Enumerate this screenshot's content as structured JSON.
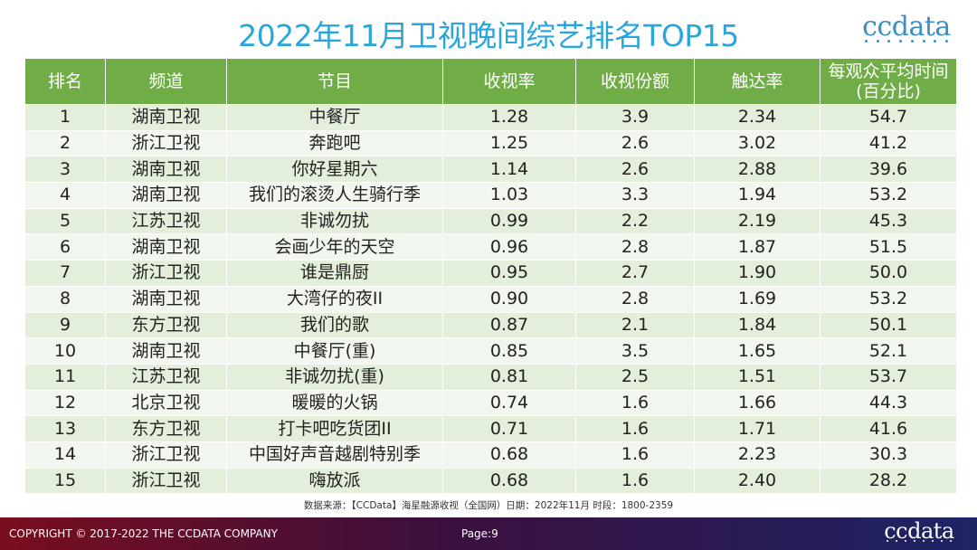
{
  "title": "2022年11月卫视晚间综艺排名TOP15",
  "logo": "ccdata",
  "table": {
    "headers": [
      "排名",
      "频道",
      "节目",
      "收视率",
      "收视份额",
      "触达率",
      "每观众平均时间\n(百分比)"
    ],
    "rows": [
      [
        "1",
        "湖南卫视",
        "中餐厅",
        "1.28",
        "3.9",
        "2.34",
        "54.7"
      ],
      [
        "2",
        "浙江卫视",
        "奔跑吧",
        "1.25",
        "2.6",
        "3.02",
        "41.2"
      ],
      [
        "3",
        "湖南卫视",
        "你好星期六",
        "1.14",
        "2.6",
        "2.88",
        "39.6"
      ],
      [
        "4",
        "湖南卫视",
        "我们的滚烫人生骑行季",
        "1.03",
        "3.3",
        "1.94",
        "53.2"
      ],
      [
        "5",
        "江苏卫视",
        "非诚勿扰",
        "0.99",
        "2.2",
        "2.19",
        "45.3"
      ],
      [
        "6",
        "湖南卫视",
        "会画少年的天空",
        "0.96",
        "2.8",
        "1.87",
        "51.5"
      ],
      [
        "7",
        "浙江卫视",
        "谁是鼎厨",
        "0.95",
        "2.7",
        "1.90",
        "50.0"
      ],
      [
        "8",
        "湖南卫视",
        "大湾仔的夜II",
        "0.90",
        "2.8",
        "1.69",
        "53.2"
      ],
      [
        "9",
        "东方卫视",
        "我们的歌",
        "0.87",
        "2.1",
        "1.84",
        "50.1"
      ],
      [
        "10",
        "湖南卫视",
        "中餐厅(重)",
        "0.85",
        "3.5",
        "1.65",
        "52.1"
      ],
      [
        "11",
        "江苏卫视",
        "非诚勿扰(重)",
        "0.81",
        "2.5",
        "1.51",
        "53.7"
      ],
      [
        "12",
        "北京卫视",
        "暖暖的火锅",
        "0.74",
        "1.6",
        "1.66",
        "44.3"
      ],
      [
        "13",
        "东方卫视",
        "打卡吧吃货团II",
        "0.71",
        "1.6",
        "1.71",
        "41.6"
      ],
      [
        "14",
        "浙江卫视",
        "中国好声音越剧特别季",
        "0.68",
        "1.6",
        "2.23",
        "30.3"
      ],
      [
        "15",
        "浙江卫视",
        "嗨放派",
        "0.68",
        "1.6",
        "2.40",
        "28.2"
      ]
    ]
  },
  "source": "数据来源：【CCData】海星融源收视（全国网）日期：2022年11月 时段：1800-2359",
  "footer": {
    "copyright": "COPYRIGHT © 2017-2022 THE CCDATA COMPANY",
    "page": "Page:9",
    "logo": "ccdata"
  },
  "colors": {
    "title": "#2aa6dd",
    "header_bg": "#70ad47",
    "row_odd": "#e3efdb",
    "row_even": "#f1f7ee",
    "footer_start": "#7a0e1e",
    "footer_end": "#1d2466"
  }
}
